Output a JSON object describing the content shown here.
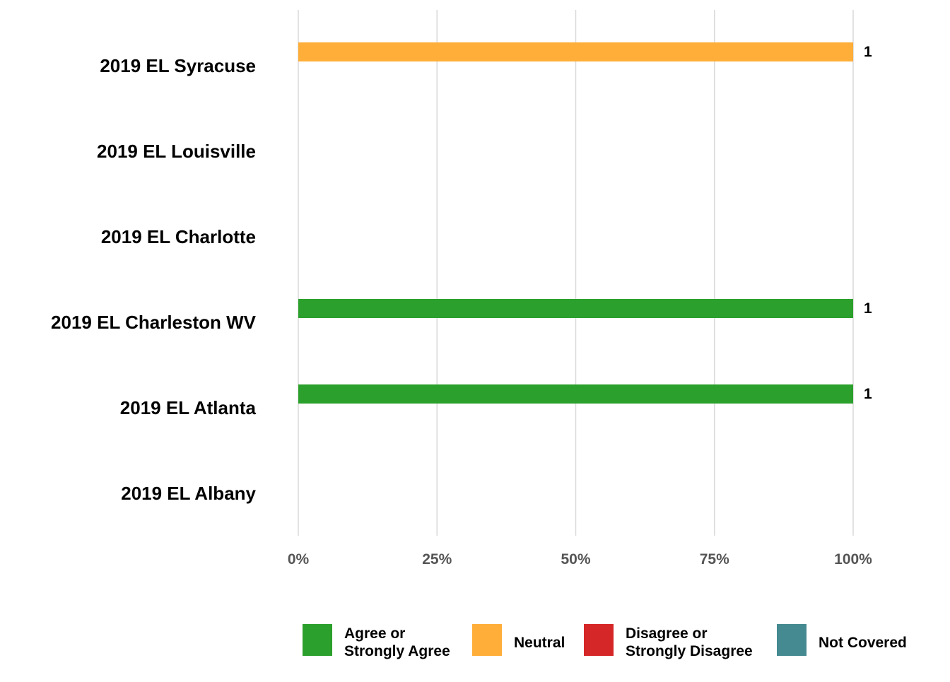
{
  "chart_data": {
    "type": "bar",
    "orientation": "horizontal",
    "stacked": true,
    "categories": [
      "2019 EL Syracuse",
      "2019 EL Louisville",
      "2019 EL Charlotte",
      "2019 EL Charleston WV",
      "2019 EL Atlanta",
      "2019 EL Albany"
    ],
    "series": [
      {
        "name": "Agree or Strongly Agree",
        "color": "#2ca02c",
        "values": [
          0,
          0,
          0,
          1,
          1,
          0
        ]
      },
      {
        "name": "Neutral",
        "color": "#ffae3a",
        "values": [
          1,
          0,
          0,
          0,
          0,
          0
        ]
      },
      {
        "name": "Disagree or Strongly Disagree",
        "color": "#d62728",
        "values": [
          0,
          0,
          0,
          0,
          0,
          0
        ]
      },
      {
        "name": "Not Covered",
        "color": "#468a91",
        "values": [
          0,
          0,
          0,
          0,
          0,
          0
        ]
      }
    ],
    "xlim": [
      0,
      1
    ],
    "x_ticks": [
      {
        "value": 0,
        "label": "0%"
      },
      {
        "value": 0.25,
        "label": "25%"
      },
      {
        "value": 0.5,
        "label": "50%"
      },
      {
        "value": 0.75,
        "label": "75%"
      },
      {
        "value": 1,
        "label": "100%"
      }
    ],
    "data_labels": [
      {
        "category": "2019 EL Syracuse",
        "series": "Neutral",
        "value": 1,
        "text": "1"
      },
      {
        "category": "2019 EL Charleston WV",
        "series": "Agree or Strongly Agree",
        "value": 1,
        "text": "1"
      },
      {
        "category": "2019 EL Atlanta",
        "series": "Agree or Strongly Agree",
        "value": 1,
        "text": "1"
      }
    ],
    "legend": {
      "position": "bottom",
      "entries": [
        {
          "lines": [
            "Agree or",
            "Strongly Agree"
          ],
          "color": "#2ca02c"
        },
        {
          "lines": [
            "Neutral"
          ],
          "color": "#ffae3a"
        },
        {
          "lines": [
            "Disagree or",
            "Strongly Disagree"
          ],
          "color": "#d62728"
        },
        {
          "lines": [
            "Not Covered"
          ],
          "color": "#468a91"
        }
      ]
    },
    "grid": true,
    "gridline_color": "#d9d9d9",
    "title": "",
    "xlabel": "",
    "ylabel": ""
  }
}
